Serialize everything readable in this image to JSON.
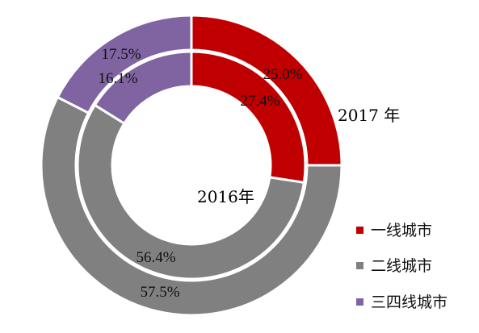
{
  "chart_data": {
    "type": "pie",
    "categories": [
      "一线城市",
      "二线城市",
      "三四线城市"
    ],
    "colors": [
      "#c00000",
      "#808080",
      "#8064a2"
    ],
    "series": [
      {
        "name": "2017 年",
        "values": [
          25.0,
          57.5,
          17.5
        ]
      },
      {
        "name": "2016年",
        "values": [
          27.4,
          56.4,
          16.1
        ]
      }
    ],
    "value_labels_outer": [
      "25.0%",
      "57.5%",
      "17.5%"
    ],
    "value_labels_inner": [
      "27.4%",
      "56.4%",
      "16.1%"
    ],
    "legend": {
      "position": "bottom-right",
      "entries": [
        "一线城市",
        "二线城市",
        "三四线城市"
      ]
    }
  }
}
